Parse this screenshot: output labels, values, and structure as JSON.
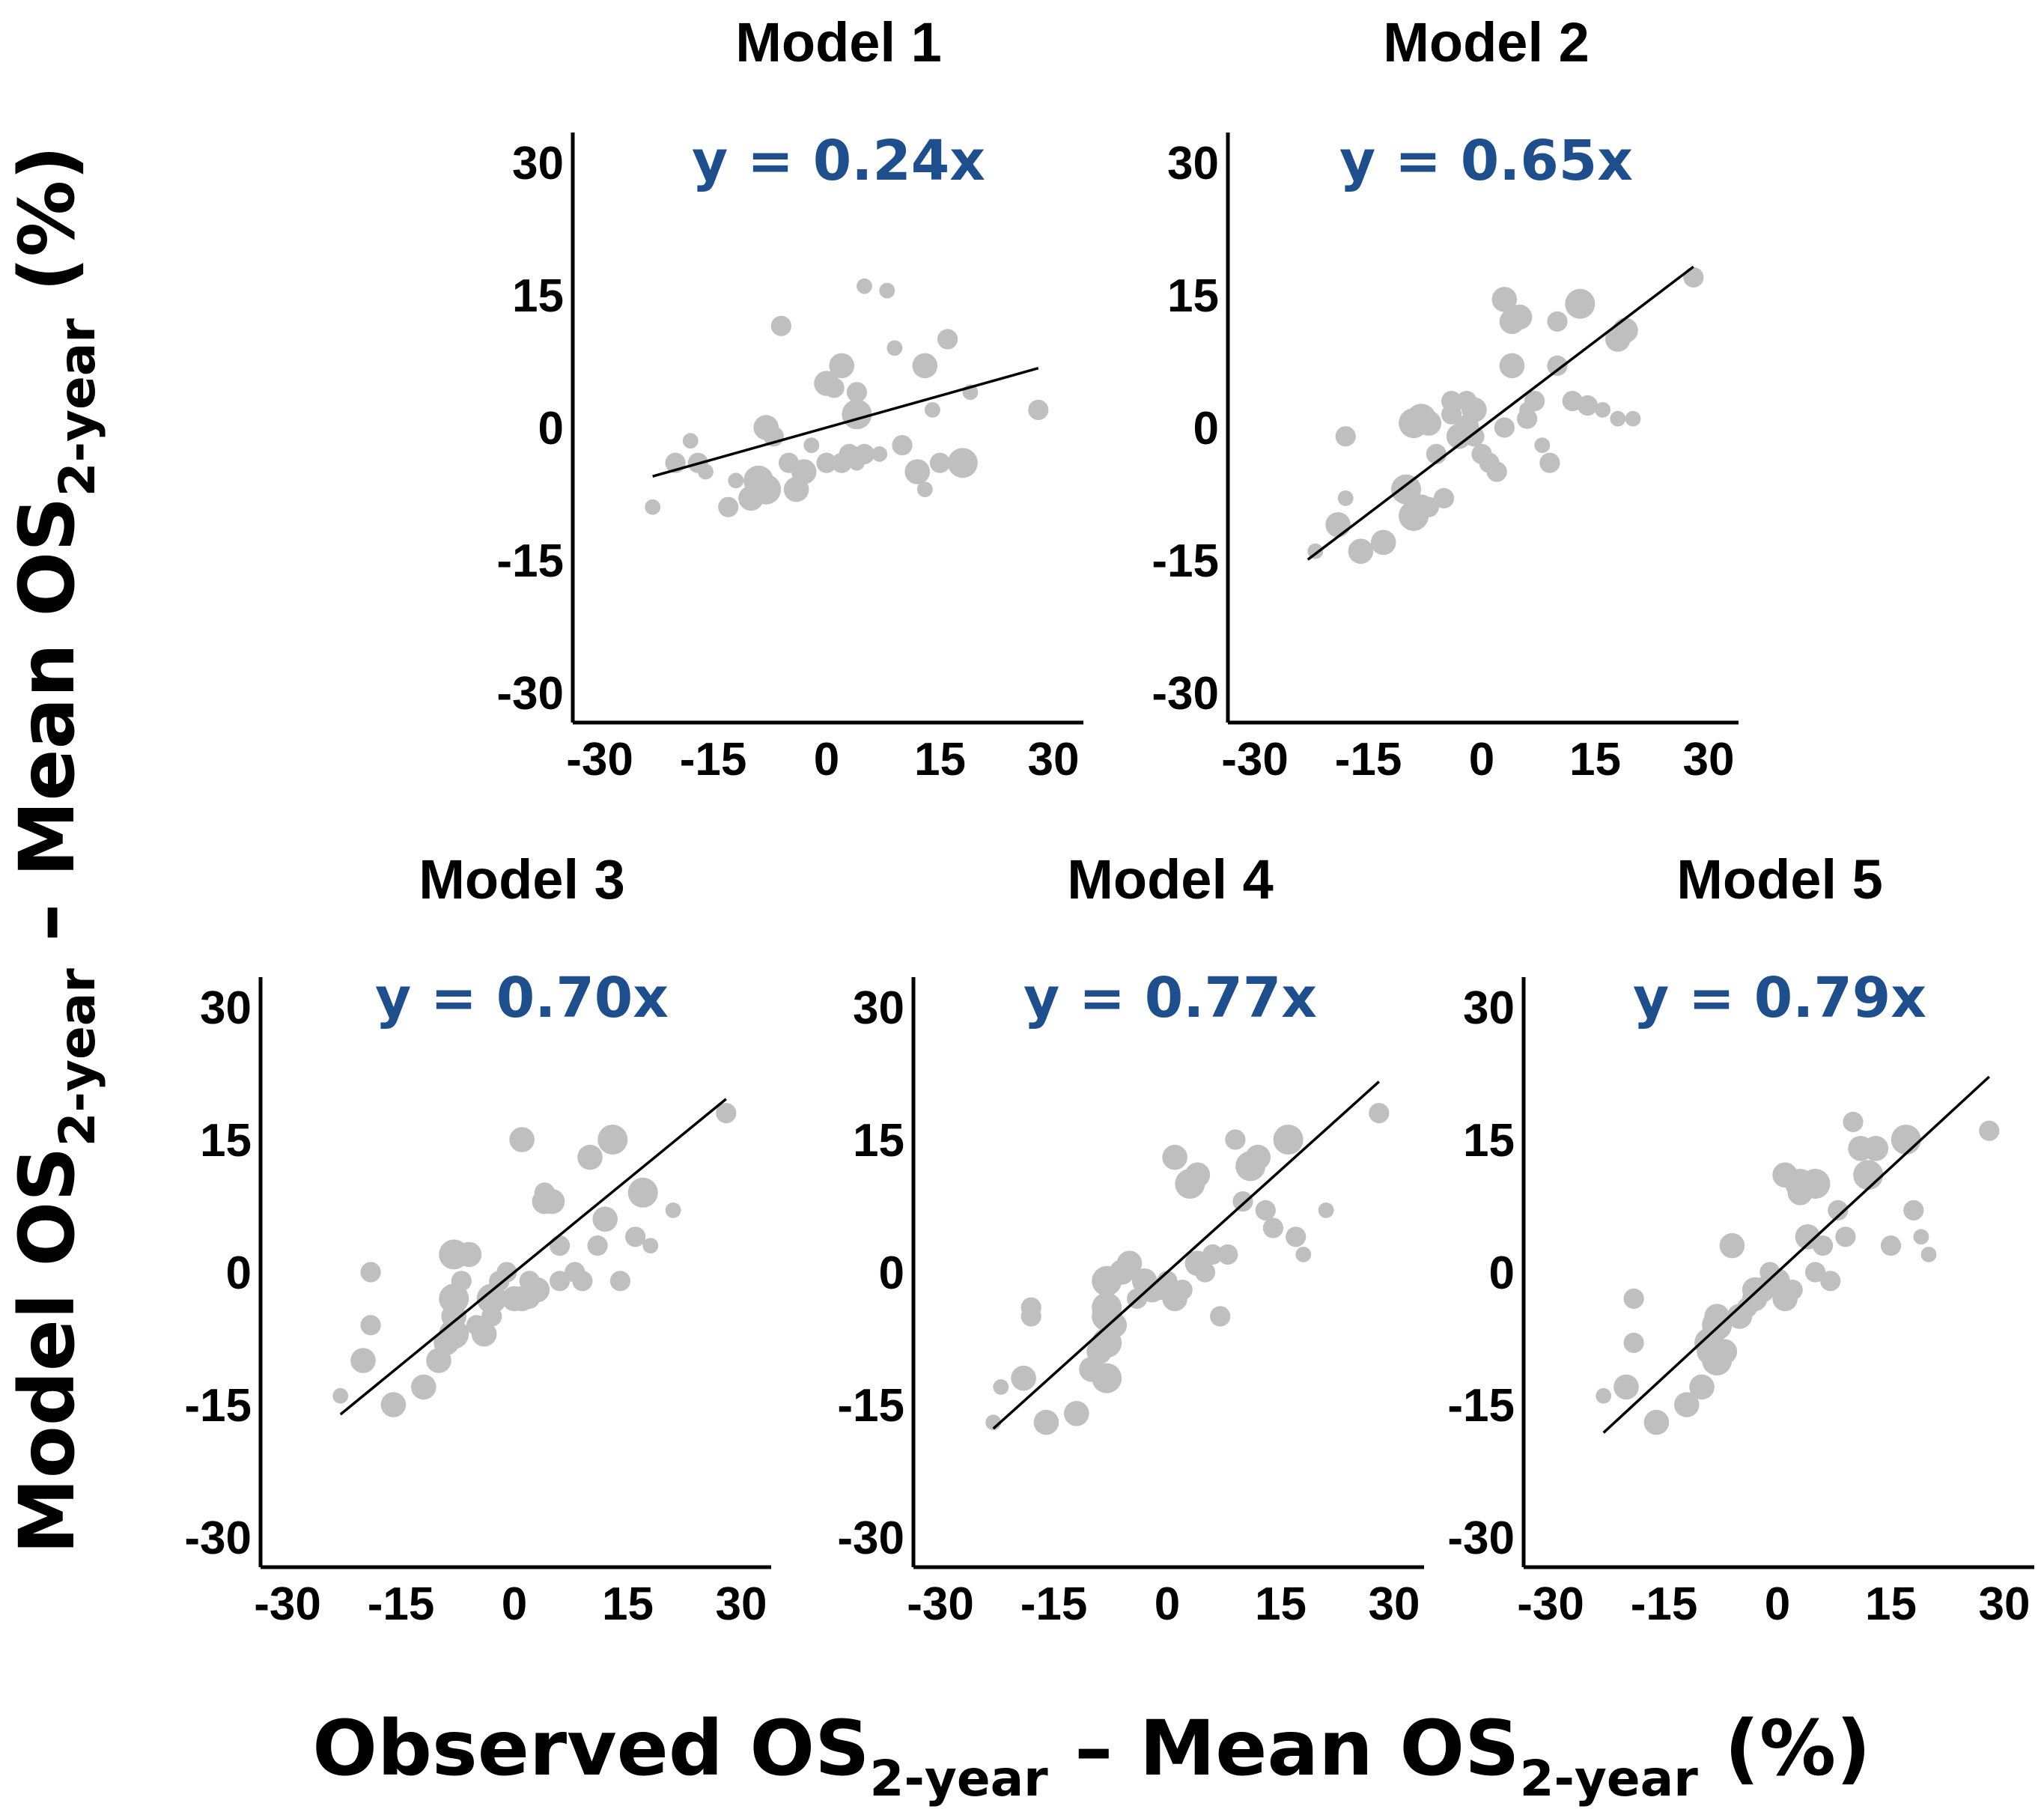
{
  "chart_data": {
    "type": "scatter",
    "xlabel": {
      "text": "Observed OS",
      "subscript": "2-year",
      "suffix": " – Mean OS",
      "subscript2": "2-year",
      "tail": " (%)"
    },
    "ylabel": {
      "text": "Model OS",
      "subscript": "2-year",
      "suffix": " – Mean OS",
      "subscript2": "2-year",
      "tail": " (%)"
    },
    "xlim": [
      -30,
      30
    ],
    "ylim": [
      -30,
      30
    ],
    "xticks": [
      "-30",
      "-15",
      "0",
      "15",
      "30"
    ],
    "yticks": [
      "30",
      "15",
      "0",
      "-15",
      "-30"
    ],
    "panels": [
      {
        "title": "Model 1",
        "equation": "y = 0.24x",
        "slope": 0.24,
        "fit_x": [
          -23,
          28
        ],
        "points": [
          [
            -23,
            -9,
            2
          ],
          [
            -20,
            -4,
            3
          ],
          [
            -18,
            -1.5,
            2
          ],
          [
            -17,
            -4,
            3
          ],
          [
            -16,
            -5,
            2
          ],
          [
            -13,
            -9,
            3
          ],
          [
            -12,
            -6,
            2
          ],
          [
            -10,
            -8,
            4
          ],
          [
            -9,
            -6,
            5
          ],
          [
            -8,
            0,
            4
          ],
          [
            -8,
            -7,
            5
          ],
          [
            -7,
            -1,
            3
          ],
          [
            -6,
            11.5,
            3
          ],
          [
            -5,
            -4,
            3
          ],
          [
            -4,
            -7,
            4
          ],
          [
            -3,
            -5,
            4
          ],
          [
            -2,
            -2,
            2
          ],
          [
            0,
            -4,
            3
          ],
          [
            0,
            5,
            4
          ],
          [
            1,
            4.5,
            3
          ],
          [
            2,
            7,
            4
          ],
          [
            2,
            -4,
            3
          ],
          [
            3,
            -3,
            3
          ],
          [
            4,
            1.5,
            5
          ],
          [
            4,
            4,
            3
          ],
          [
            4,
            -4,
            2
          ],
          [
            5,
            -3,
            3
          ],
          [
            5,
            16,
            2
          ],
          [
            7,
            -3,
            2
          ],
          [
            8,
            15.5,
            2
          ],
          [
            9,
            9,
            2
          ],
          [
            10,
            -2,
            3
          ],
          [
            12,
            -5,
            4
          ],
          [
            13,
            7,
            4
          ],
          [
            13,
            -7,
            2
          ],
          [
            14,
            2,
            2
          ],
          [
            15,
            -4,
            3
          ],
          [
            16,
            10,
            3
          ],
          [
            18,
            -4,
            5
          ],
          [
            19,
            4,
            2
          ],
          [
            28,
            2,
            3
          ]
        ]
      },
      {
        "title": "Model 2",
        "equation": "y = 0.65x",
        "slope": 0.65,
        "fit_x": [
          -23,
          28
        ],
        "points": [
          [
            -22,
            -14,
            2
          ],
          [
            -19,
            -11,
            4
          ],
          [
            -18,
            -8,
            2
          ],
          [
            -18,
            -1,
            3
          ],
          [
            -16,
            -14,
            4
          ],
          [
            -13,
            -13,
            4
          ],
          [
            -10,
            -7,
            5
          ],
          [
            -9,
            -10,
            5
          ],
          [
            -9,
            0.5,
            5
          ],
          [
            -8,
            -9,
            4
          ],
          [
            -8,
            1,
            5
          ],
          [
            -7,
            0.5,
            4
          ],
          [
            -7,
            -9,
            3
          ],
          [
            -6,
            -3,
            3
          ],
          [
            -5,
            -8,
            3
          ],
          [
            -4,
            1.5,
            3
          ],
          [
            -4,
            3,
            3
          ],
          [
            -3,
            -1,
            4
          ],
          [
            -2,
            0,
            4
          ],
          [
            -2,
            3,
            3
          ],
          [
            -1,
            -1,
            3
          ],
          [
            -1,
            2,
            4
          ],
          [
            0,
            -3,
            3
          ],
          [
            1,
            -4,
            3
          ],
          [
            2,
            -5,
            3
          ],
          [
            3,
            0,
            3
          ],
          [
            3,
            14.5,
            4
          ],
          [
            4,
            7,
            4
          ],
          [
            4,
            12,
            4
          ],
          [
            5,
            12.5,
            4
          ],
          [
            6,
            1,
            3
          ],
          [
            6,
            2,
            2
          ],
          [
            7,
            3,
            3
          ],
          [
            8,
            -2,
            2
          ],
          [
            9,
            -4,
            3
          ],
          [
            10,
            12,
            3
          ],
          [
            10,
            7,
            3
          ],
          [
            12,
            3,
            3
          ],
          [
            13,
            14,
            5
          ],
          [
            14,
            2.5,
            3
          ],
          [
            16,
            2,
            2
          ],
          [
            18,
            1,
            2
          ],
          [
            18,
            10,
            4
          ],
          [
            19,
            11,
            4
          ],
          [
            20,
            1,
            2
          ],
          [
            28,
            17,
            3
          ]
        ]
      },
      {
        "title": "Model 3",
        "equation": "y = 0.70x",
        "slope": 0.7,
        "fit_x": [
          -23,
          28
        ],
        "points": [
          [
            -23,
            -14,
            2
          ],
          [
            -20,
            -10,
            4
          ],
          [
            -19,
            0,
            3
          ],
          [
            -19,
            -6,
            3
          ],
          [
            -16,
            -15,
            4
          ],
          [
            -12,
            -13,
            4
          ],
          [
            -10,
            -10,
            4
          ],
          [
            -9,
            -8,
            4
          ],
          [
            -8,
            -7,
            5
          ],
          [
            -8,
            -3,
            5
          ],
          [
            -8,
            -5,
            4
          ],
          [
            -8,
            2,
            5
          ],
          [
            -7,
            -1,
            3
          ],
          [
            -6,
            2,
            4
          ],
          [
            -5,
            -6,
            3
          ],
          [
            -4,
            -7,
            4
          ],
          [
            -3,
            -3,
            5
          ],
          [
            -3,
            -5,
            3
          ],
          [
            -2,
            -1,
            3
          ],
          [
            -1,
            0,
            3
          ],
          [
            0,
            -3,
            4
          ],
          [
            1,
            -3,
            4
          ],
          [
            1,
            15,
            4
          ],
          [
            2,
            -3,
            3
          ],
          [
            2,
            -1,
            3
          ],
          [
            3,
            -2,
            4
          ],
          [
            4,
            8,
            4
          ],
          [
            4,
            9,
            3
          ],
          [
            5,
            8,
            4
          ],
          [
            6,
            3,
            3
          ],
          [
            6,
            -1,
            3
          ],
          [
            8,
            0,
            3
          ],
          [
            9,
            -1,
            3
          ],
          [
            10,
            13,
            4
          ],
          [
            11,
            3,
            3
          ],
          [
            12,
            6,
            4
          ],
          [
            13,
            15,
            5
          ],
          [
            14,
            -1,
            3
          ],
          [
            16,
            4,
            3
          ],
          [
            17,
            9,
            5
          ],
          [
            18,
            3,
            2
          ],
          [
            21,
            7,
            2
          ],
          [
            28,
            18,
            3
          ]
        ]
      },
      {
        "title": "Model 4",
        "equation": "y = 0.77x",
        "slope": 0.77,
        "fit_x": [
          -23,
          28
        ],
        "points": [
          [
            -23,
            -17,
            2
          ],
          [
            -22,
            -13,
            2
          ],
          [
            -19,
            -12,
            4
          ],
          [
            -18,
            -4,
            3
          ],
          [
            -18,
            -5,
            3
          ],
          [
            -16,
            -17,
            4
          ],
          [
            -12,
            -16,
            4
          ],
          [
            -10,
            -11,
            4
          ],
          [
            -9,
            -9,
            4
          ],
          [
            -8,
            -8,
            5
          ],
          [
            -8,
            -12,
            5
          ],
          [
            -8,
            -5,
            5
          ],
          [
            -8,
            -4,
            5
          ],
          [
            -8,
            -1,
            5
          ],
          [
            -7,
            -6,
            4
          ],
          [
            -6,
            0,
            4
          ],
          [
            -5,
            1,
            4
          ],
          [
            -4,
            -3,
            3
          ],
          [
            -3,
            -1,
            4
          ],
          [
            -2,
            -2,
            4
          ],
          [
            -1,
            -2,
            3
          ],
          [
            0,
            -1,
            3
          ],
          [
            1,
            -3,
            4
          ],
          [
            1,
            13,
            4
          ],
          [
            2,
            -2,
            3
          ],
          [
            3,
            10,
            5
          ],
          [
            4,
            1,
            4
          ],
          [
            4,
            11,
            4
          ],
          [
            5,
            0,
            3
          ],
          [
            6,
            2,
            3
          ],
          [
            7,
            -5,
            3
          ],
          [
            8,
            2,
            3
          ],
          [
            9,
            15,
            3
          ],
          [
            10,
            8,
            3
          ],
          [
            11,
            12,
            5
          ],
          [
            12,
            13,
            4
          ],
          [
            13,
            7,
            3
          ],
          [
            14,
            5,
            3
          ],
          [
            16,
            15,
            5
          ],
          [
            17,
            4,
            3
          ],
          [
            18,
            2,
            2
          ],
          [
            21,
            7,
            2
          ],
          [
            28,
            18,
            3
          ]
        ]
      },
      {
        "title": "Model 5",
        "equation": "y = 0.79x",
        "slope": 0.79,
        "fit_x": [
          -23,
          28
        ],
        "points": [
          [
            -23,
            -14,
            2
          ],
          [
            -20,
            -13,
            4
          ],
          [
            -19,
            -3,
            3
          ],
          [
            -19,
            -8,
            3
          ],
          [
            -16,
            -17,
            4
          ],
          [
            -12,
            -15,
            4
          ],
          [
            -10,
            -13,
            4
          ],
          [
            -9,
            -9,
            4
          ],
          [
            -9,
            -8,
            5
          ],
          [
            -8,
            -10,
            5
          ],
          [
            -8,
            -6,
            5
          ],
          [
            -8,
            -5,
            4
          ],
          [
            -7,
            -9,
            4
          ],
          [
            -6,
            3,
            4
          ],
          [
            -5,
            -5,
            4
          ],
          [
            -4,
            -4,
            3
          ],
          [
            -3,
            -2,
            4
          ],
          [
            -3,
            -3,
            4
          ],
          [
            -2,
            -2,
            4
          ],
          [
            -1,
            0,
            3
          ],
          [
            0,
            -1,
            4
          ],
          [
            1,
            -3,
            4
          ],
          [
            1,
            11,
            4
          ],
          [
            2,
            -2,
            3
          ],
          [
            3,
            10,
            5
          ],
          [
            3,
            9,
            4
          ],
          [
            4,
            4,
            4
          ],
          [
            5,
            10,
            5
          ],
          [
            5,
            0,
            3
          ],
          [
            6,
            3,
            3
          ],
          [
            7,
            -1,
            3
          ],
          [
            8,
            7,
            3
          ],
          [
            9,
            4,
            3
          ],
          [
            10,
            17,
            3
          ],
          [
            11,
            14,
            4
          ],
          [
            12,
            11,
            5
          ],
          [
            13,
            14,
            4
          ],
          [
            15,
            3,
            3
          ],
          [
            17,
            15,
            5
          ],
          [
            18,
            7,
            3
          ],
          [
            19,
            4,
            2
          ],
          [
            20,
            2,
            2
          ],
          [
            28,
            16,
            3
          ]
        ]
      }
    ]
  }
}
